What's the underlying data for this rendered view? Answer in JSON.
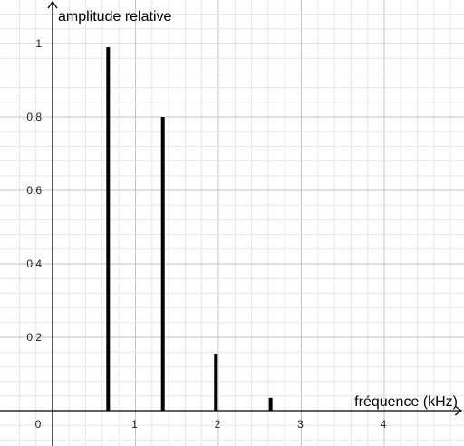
{
  "chart_data": {
    "type": "bar",
    "xlabel": "fréquence (kHz)",
    "ylabel": "amplitude relative",
    "x_ticks": [
      "0",
      "1",
      "2",
      "3",
      "4"
    ],
    "y_ticks": [
      "0.2",
      "0.4",
      "0.6",
      "0.8",
      "1"
    ],
    "xlim": [
      -0.45,
      4.98
    ],
    "ylim": [
      -0.09,
      1.08
    ],
    "grid": true,
    "series": [
      {
        "x": [
          0.67,
          1.33,
          1.97,
          2.63
        ],
        "values": [
          0.99,
          0.8,
          0.155,
          0.035
        ]
      }
    ]
  }
}
